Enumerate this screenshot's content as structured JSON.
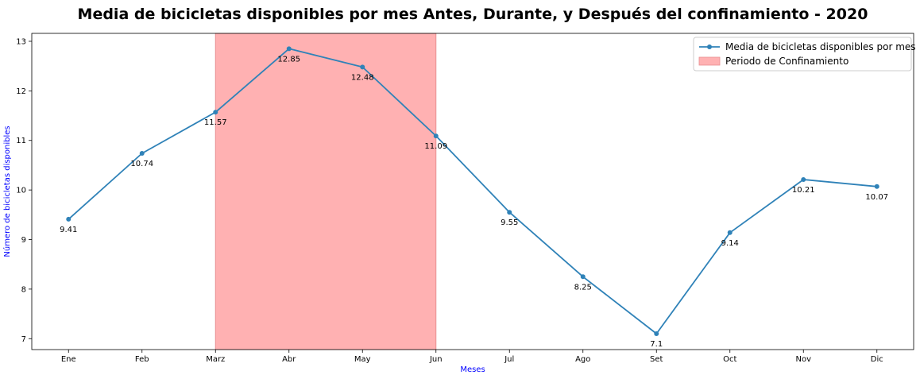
{
  "chart_data": {
    "type": "line",
    "title": "Media de bicicletas disponibles por mes Antes, Durante, y Después del confinamiento - 2020",
    "xlabel": "Meses",
    "ylabel": "Número de bicicletas disponibles",
    "categories": [
      "Ene",
      "Feb",
      "Marz",
      "Abr",
      "May",
      "Jun",
      "Jul",
      "Ago",
      "Set",
      "Oct",
      "Nov",
      "Dic"
    ],
    "series": [
      {
        "name": "Media de bicicletas disponibles por mes",
        "values": [
          9.41,
          10.74,
          11.57,
          12.85,
          12.48,
          11.09,
          9.55,
          8.25,
          7.1,
          9.14,
          10.21,
          10.07
        ],
        "labels": [
          "9.41",
          "10.74",
          "11.57",
          "12.85",
          "12.48",
          "11.09",
          "9.55",
          "8.25",
          "7.1",
          "9.14",
          "10.21",
          "10.07"
        ],
        "color": "#2f82b8"
      }
    ],
    "shaded_region": {
      "name": "Periodo de Confinamiento",
      "from_category": "Marz",
      "to_category": "Jun",
      "color": "#ffb1b2",
      "edge_color": "#e88f91"
    },
    "yticks": [
      7,
      8,
      9,
      10,
      11,
      12,
      13
    ],
    "ylim": [
      6.78,
      13.16
    ],
    "grid": false,
    "legend_position": "top-right",
    "axis_label_color": "#0000ff"
  }
}
